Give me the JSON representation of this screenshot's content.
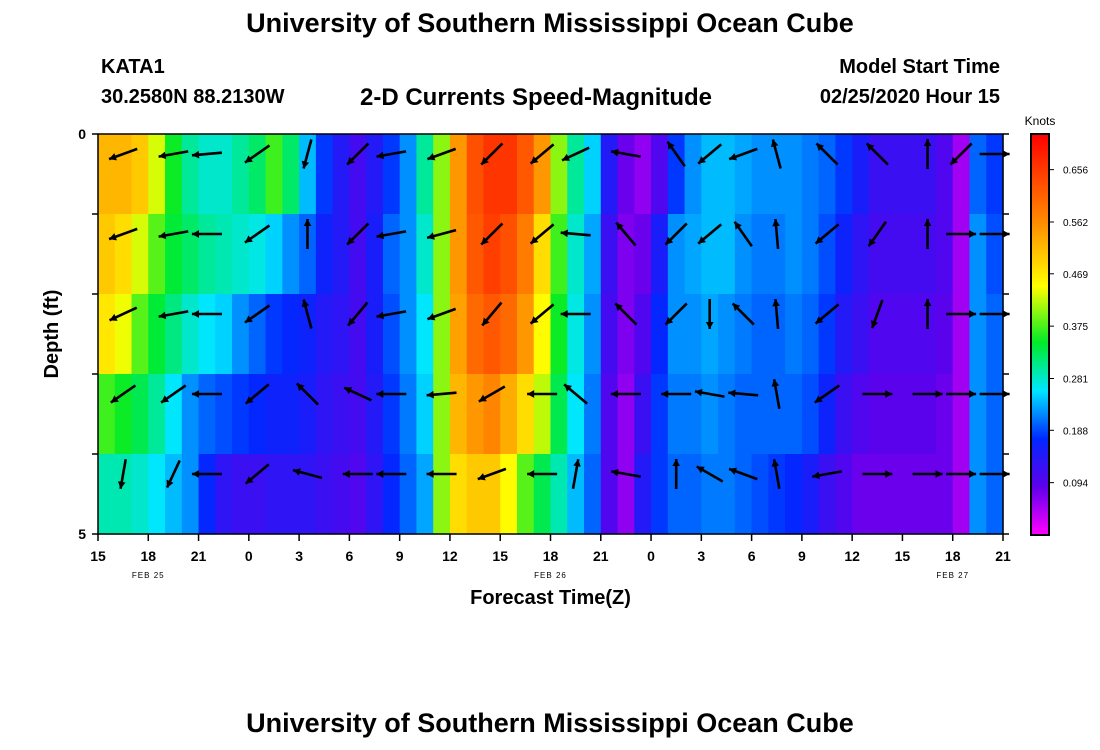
{
  "header": {
    "title": "University of Southern Mississippi Ocean Cube",
    "station_id": "KATA1",
    "coords": "30.2580N 88.2130W",
    "model_label": "Model Start Time",
    "model_time": "02/25/2020 Hour 15",
    "footer_title": "University of Southern Mississippi Ocean Cube"
  },
  "chart_data": {
    "type": "heatmap",
    "title": "2-D Currents Speed-Magnitude",
    "xlabel": "Forecast Time(Z)",
    "ylabel": "Depth (ft)",
    "x_tick_labels": [
      "15",
      "18",
      "21",
      "0",
      "3",
      "6",
      "9",
      "12",
      "15",
      "18",
      "21",
      "0",
      "3",
      "6",
      "9",
      "12",
      "15",
      "18",
      "21"
    ],
    "date_labels": [
      {
        "label": "FEB 25",
        "hour_index": 3
      },
      {
        "label": "FEB 26",
        "hour_index": 27
      },
      {
        "label": "FEB 27",
        "hour_index": 51
      }
    ],
    "y_tick_labels": [
      "0",
      "5"
    ],
    "ylim": [
      0,
      5
    ],
    "hours": 54,
    "depth_layers": 5,
    "colorbar": {
      "title": "Knots",
      "ticks": [
        "0.656",
        "0.562",
        "0.469",
        "0.375",
        "0.281",
        "0.188",
        "0.094"
      ],
      "vmin": 0.0,
      "vmax": 0.72
    },
    "speed_knots": [
      [
        0.52,
        0.52,
        0.5,
        0.43,
        0.35,
        0.3,
        0.28,
        0.28,
        0.3,
        0.32,
        0.37,
        0.32,
        0.24,
        0.18,
        0.14,
        0.11,
        0.14,
        0.18,
        0.22,
        0.3,
        0.4,
        0.55,
        0.63,
        0.66,
        0.66,
        0.62,
        0.55,
        0.4,
        0.3,
        0.25,
        0.14,
        0.08,
        0.06,
        0.1,
        0.18,
        0.22,
        0.24,
        0.24,
        0.23,
        0.22,
        0.22,
        0.22,
        0.21,
        0.2,
        0.18,
        0.15,
        0.12,
        0.12,
        0.12,
        0.12,
        0.1,
        0.05,
        0.2,
        0.18
      ],
      [
        0.5,
        0.48,
        0.43,
        0.38,
        0.34,
        0.32,
        0.3,
        0.29,
        0.28,
        0.27,
        0.25,
        0.22,
        0.2,
        0.16,
        0.14,
        0.11,
        0.15,
        0.2,
        0.22,
        0.28,
        0.4,
        0.55,
        0.62,
        0.65,
        0.63,
        0.58,
        0.48,
        0.37,
        0.28,
        0.23,
        0.12,
        0.07,
        0.08,
        0.15,
        0.22,
        0.23,
        0.24,
        0.24,
        0.22,
        0.21,
        0.21,
        0.22,
        0.21,
        0.19,
        0.16,
        0.13,
        0.11,
        0.11,
        0.11,
        0.11,
        0.1,
        0.05,
        0.22,
        0.19
      ],
      [
        0.47,
        0.44,
        0.38,
        0.34,
        0.31,
        0.28,
        0.26,
        0.25,
        0.22,
        0.2,
        0.18,
        0.17,
        0.16,
        0.14,
        0.13,
        0.11,
        0.15,
        0.19,
        0.22,
        0.26,
        0.4,
        0.54,
        0.6,
        0.62,
        0.6,
        0.55,
        0.45,
        0.35,
        0.27,
        0.22,
        0.11,
        0.07,
        0.1,
        0.17,
        0.22,
        0.22,
        0.23,
        0.22,
        0.21,
        0.2,
        0.2,
        0.21,
        0.2,
        0.18,
        0.14,
        0.12,
        0.1,
        0.1,
        0.1,
        0.1,
        0.09,
        0.05,
        0.22,
        0.2
      ],
      [
        0.37,
        0.35,
        0.33,
        0.3,
        0.26,
        0.22,
        0.2,
        0.19,
        0.18,
        0.17,
        0.16,
        0.16,
        0.15,
        0.13,
        0.12,
        0.11,
        0.14,
        0.18,
        0.21,
        0.25,
        0.4,
        0.52,
        0.55,
        0.57,
        0.53,
        0.48,
        0.42,
        0.33,
        0.26,
        0.21,
        0.1,
        0.06,
        0.12,
        0.18,
        0.21,
        0.21,
        0.22,
        0.21,
        0.2,
        0.2,
        0.2,
        0.2,
        0.19,
        0.16,
        0.12,
        0.1,
        0.09,
        0.09,
        0.09,
        0.09,
        0.08,
        0.05,
        0.22,
        0.2
      ],
      [
        0.29,
        0.29,
        0.28,
        0.26,
        0.24,
        0.22,
        0.17,
        0.13,
        0.12,
        0.12,
        0.13,
        0.13,
        0.13,
        0.12,
        0.11,
        0.1,
        0.13,
        0.17,
        0.2,
        0.23,
        0.4,
        0.48,
        0.5,
        0.5,
        0.45,
        0.38,
        0.33,
        0.29,
        0.24,
        0.2,
        0.1,
        0.06,
        0.14,
        0.18,
        0.2,
        0.2,
        0.21,
        0.21,
        0.2,
        0.19,
        0.18,
        0.17,
        0.15,
        0.12,
        0.1,
        0.08,
        0.08,
        0.08,
        0.08,
        0.08,
        0.08,
        0.05,
        0.22,
        0.2
      ]
    ],
    "arrow_hour_indices": [
      1,
      4,
      6,
      9,
      12,
      15,
      17,
      20,
      23,
      26,
      28,
      31,
      34,
      36,
      38,
      40,
      43,
      46,
      49,
      51,
      53
    ],
    "arrows_deg": [
      [
        200,
        190,
        185,
        215,
        255,
        225,
        190,
        200,
        225,
        220,
        205,
        170,
        125,
        220,
        200,
        105,
        135,
        135,
        90,
        225,
        0
      ],
      [
        200,
        190,
        180,
        215,
        90,
        225,
        190,
        195,
        225,
        220,
        175,
        130,
        225,
        220,
        125,
        95,
        220,
        235,
        90,
        0,
        0
      ],
      [
        205,
        190,
        180,
        215,
        105,
        230,
        190,
        200,
        230,
        220,
        180,
        135,
        225,
        270,
        135,
        95,
        220,
        250,
        90,
        0,
        0
      ],
      [
        215,
        215,
        180,
        220,
        135,
        155,
        180,
        185,
        210,
        180,
        140,
        180,
        180,
        170,
        175,
        100,
        215,
        0,
        0,
        0,
        0
      ],
      [
        260,
        245,
        180,
        220,
        165,
        180,
        180,
        180,
        200,
        180,
        80,
        170,
        90,
        150,
        160,
        100,
        190,
        0,
        0,
        0,
        0
      ]
    ]
  }
}
